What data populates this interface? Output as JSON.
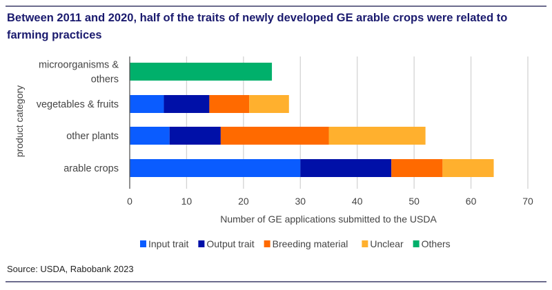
{
  "chart_data": {
    "type": "bar",
    "orientation": "horizontal",
    "stacked": true,
    "title": "Between 2011 and 2020, half of the traits of newly developed GE arable crops were related to farming practices",
    "xlabel": "Number of GE applications submitted to the USDA",
    "ylabel": "product category",
    "xlim": [
      0,
      70
    ],
    "xticks": [
      0,
      10,
      20,
      30,
      40,
      50,
      60,
      70
    ],
    "grid": true,
    "legend_position": "bottom",
    "categories": [
      [
        "microorganisms &",
        "others"
      ],
      [
        "vegetables & fruits"
      ],
      [
        "other plants"
      ],
      [
        "arable crops"
      ]
    ],
    "series": [
      {
        "name": "Input trait",
        "color": "#0a5cff",
        "values": [
          0,
          6,
          7,
          30
        ]
      },
      {
        "name": "Output trait",
        "color": "#0010a8",
        "values": [
          0,
          8,
          9,
          16
        ]
      },
      {
        "name": "Breeding material",
        "color": "#ff6a00",
        "values": [
          0,
          7,
          19,
          9
        ]
      },
      {
        "name": "Unclear",
        "color": "#ffb02e",
        "values": [
          0,
          7,
          17,
          9
        ]
      },
      {
        "name": "Others",
        "color": "#00b06b",
        "values": [
          25,
          0,
          0,
          0
        ]
      }
    ]
  },
  "source": "Source: USDA, Rabobank 2023"
}
